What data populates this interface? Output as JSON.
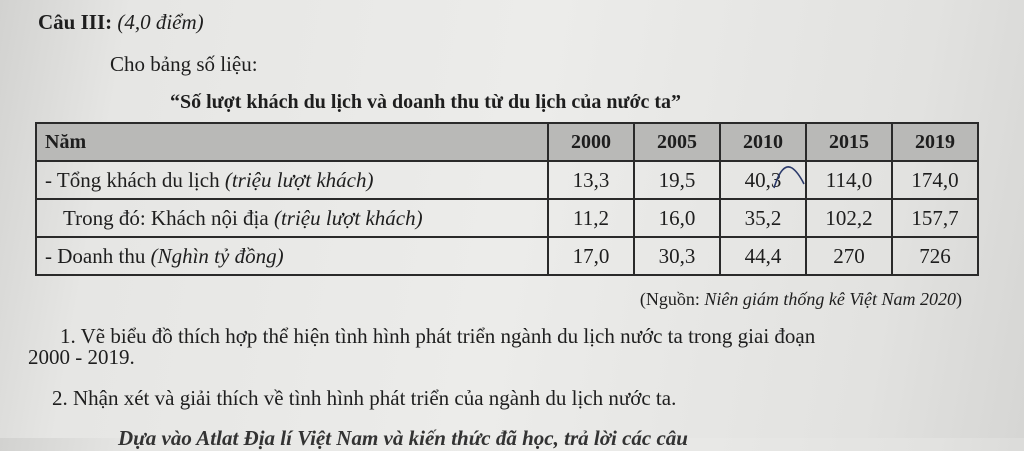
{
  "question": {
    "label": "Câu III:",
    "points": "(4,0 điểm)"
  },
  "intro": "Cho bảng số liệu:",
  "title": "“Số lượt khách du lịch và doanh thu từ du lịch của nước ta”",
  "table": {
    "header": {
      "label": "Năm",
      "years": [
        "2000",
        "2005",
        "2010",
        "2015",
        "2019"
      ]
    },
    "rows": [
      {
        "label": "- Tổng khách du lịch ",
        "unit": "(triệu lượt khách)",
        "values": [
          "13,3",
          "19,5",
          "40,3",
          "114,0",
          "174,0"
        ]
      },
      {
        "label": "Trong đó: Khách nội địa ",
        "unit": "(triệu lượt khách)",
        "values": [
          "11,2",
          "16,0",
          "35,2",
          "102,2",
          "157,7"
        ]
      },
      {
        "label": "- Doanh thu ",
        "unit": "(Nghìn tỷ đồng)",
        "values": [
          "17,0",
          "30,3",
          "44,4",
          "270",
          "726"
        ]
      }
    ]
  },
  "source": {
    "prefix": "(Nguồn: ",
    "name": "Niên giám thống kê Việt Nam 2020",
    "suffix": ")"
  },
  "tasks": [
    {
      "line1": "1. Vẽ biểu đồ thích hợp thể hiện tình hình phát triển ngành du lịch nước ta trong giai đoạn",
      "line2": "2000 - 2019."
    },
    {
      "line1": "2. Nhận xét và giải thích về tình hình phát triển của ngành du lịch nước ta."
    }
  ],
  "cut_line": "Dựa vào Atlat Địa lí Việt Nam và kiến thức đã học, trả lời các câu"
}
